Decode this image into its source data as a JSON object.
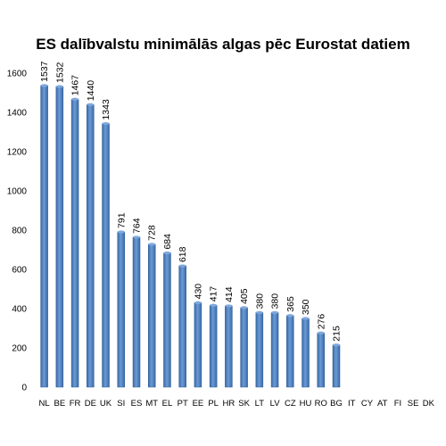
{
  "chart_data": {
    "type": "bar",
    "title": "ES dalībvalstu minimālās algas pēc Eurostat datiem",
    "xlabel": "",
    "ylabel": "",
    "ylim": [
      0,
      1600
    ],
    "yticks": [
      0,
      200,
      400,
      600,
      800,
      1000,
      1200,
      1400,
      1600
    ],
    "grid": false,
    "legend": "none",
    "bar_color": "#4f81bd",
    "categories": [
      "NL",
      "BE",
      "FR",
      "DE",
      "UK",
      "SI",
      "ES",
      "MT",
      "EL",
      "PT",
      "EE",
      "PL",
      "HR",
      "SK",
      "LT",
      "LV",
      "CZ",
      "HU",
      "RO",
      "BG",
      "IT",
      "CY",
      "AT",
      "FI",
      "SE",
      "DK"
    ],
    "values": [
      1537,
      1532,
      1467,
      1440,
      1343,
      791,
      764,
      728,
      684,
      618,
      430,
      417,
      414,
      405,
      380,
      380,
      365,
      350,
      276,
      215,
      null,
      null,
      null,
      null,
      null,
      null
    ]
  }
}
